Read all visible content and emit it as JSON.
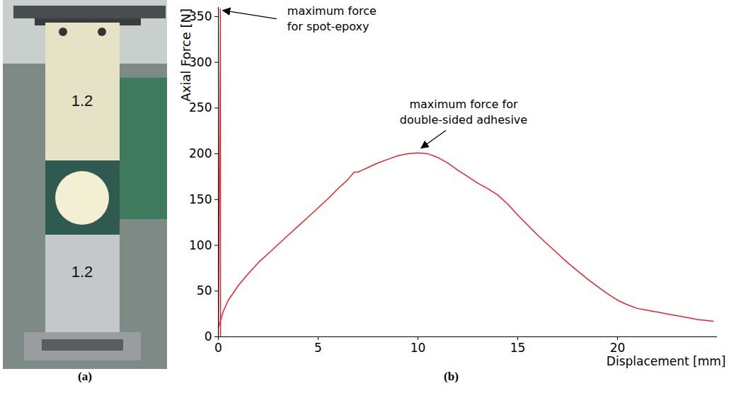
{
  "figure": {
    "panel_labels": [
      "(a)",
      "(b)"
    ]
  },
  "photo": {
    "labels": [
      "1.2",
      "1.2"
    ]
  },
  "chart_data": {
    "type": "line",
    "x_label": "Displacement [mm]",
    "y_label": "Axial Force [N]",
    "xlim": [
      0,
      25
    ],
    "xticks": [
      0,
      5,
      10,
      15,
      20
    ],
    "ylim": [
      0,
      360
    ],
    "yticks": [
      0,
      50,
      100,
      150,
      200,
      250,
      300,
      350
    ],
    "grid": false,
    "series": [
      {
        "color": "#e8232b",
        "x": [
          0,
          0.03,
          0.06,
          0.09,
          0.1,
          0.11
        ],
        "values": [
          0,
          100,
          200,
          300,
          358,
          0
        ]
      },
      {
        "color": "#e8232b",
        "x": [
          0,
          0.25,
          0.5,
          1,
          1.5,
          2,
          2.5,
          3,
          3.5,
          4,
          4.5,
          5,
          5.5,
          6,
          6.5,
          6.8,
          7,
          7.5,
          8,
          8.5,
          9,
          9.5,
          10,
          10.5,
          11,
          11.5,
          12,
          12.5,
          13,
          13.5,
          14,
          14.5,
          15,
          15.5,
          16,
          16.5,
          17,
          17.5,
          18,
          18.5,
          19,
          19.5,
          20,
          20.5,
          21,
          21.5,
          22,
          22.5,
          23,
          23.5,
          24,
          24.8
        ],
        "values": [
          10,
          28,
          40,
          56,
          69,
          81,
          91,
          101,
          111,
          121,
          131,
          141,
          151,
          162,
          172,
          180,
          180,
          185,
          190,
          194,
          198,
          200,
          201,
          200,
          196,
          190,
          182,
          175,
          168,
          162,
          155,
          145,
          133,
          122,
          111,
          101,
          91,
          81,
          72,
          63,
          55,
          47,
          40,
          35,
          31,
          29,
          27,
          25,
          23,
          21,
          19,
          17
        ]
      }
    ],
    "annotations": [
      {
        "lines": [
          "maximum force",
          "for spot-epoxy"
        ],
        "x": 0.1,
        "y": 358
      },
      {
        "lines": [
          "maximum force for",
          "double-sided adhesive"
        ],
        "x": 10,
        "y": 202
      }
    ]
  }
}
